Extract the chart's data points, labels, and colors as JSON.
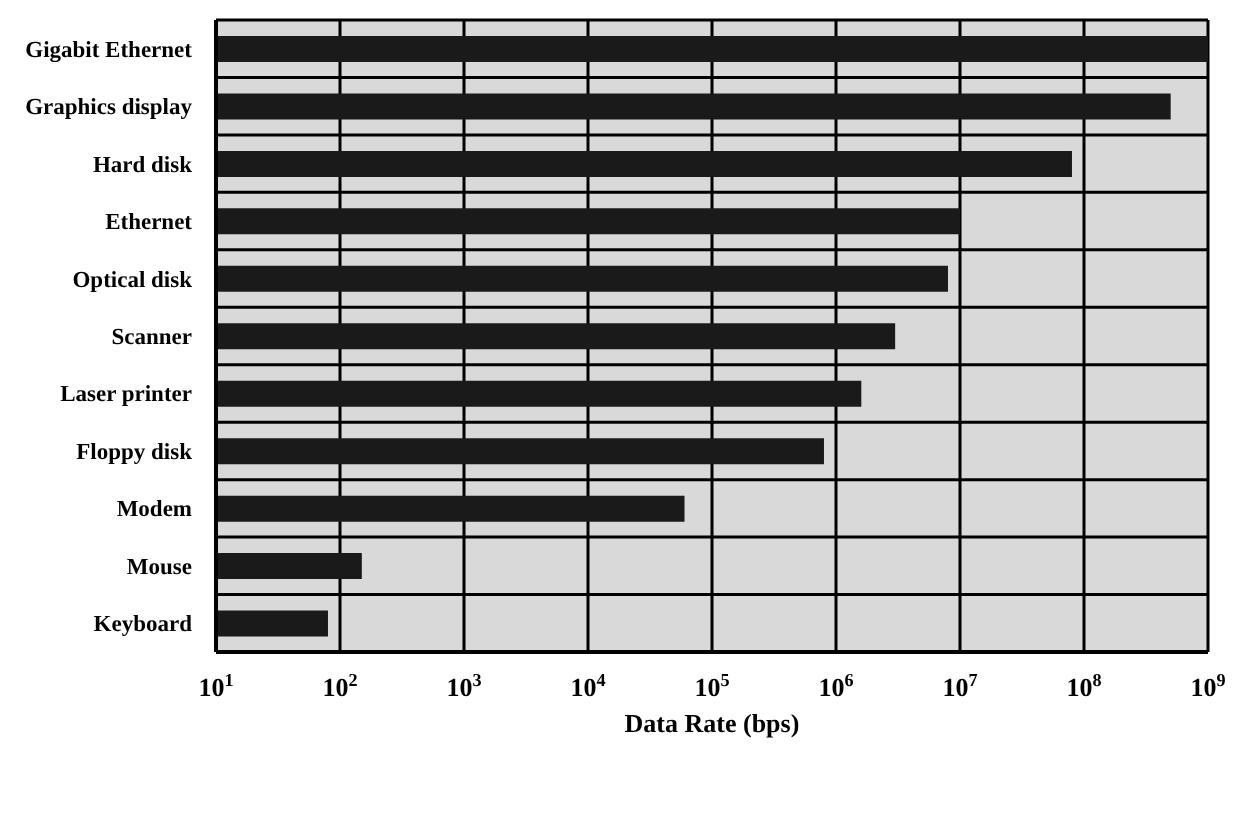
{
  "chart_data": {
    "type": "bar",
    "orientation": "horizontal",
    "log": "x",
    "xlabel": "Data Rate (bps)",
    "categories": [
      "Gigabit Ethernet",
      "Graphics display",
      "Hard disk",
      "Ethernet",
      "Optical disk",
      "Scanner",
      "Laser printer",
      "Floppy disk",
      "Modem",
      "Mouse",
      "Keyboard"
    ],
    "values": [
      1000000000,
      500000000,
      80000000,
      10000000,
      8000000,
      3000000,
      1600000,
      800000,
      60000,
      150,
      80
    ],
    "color": "#1a1a1a",
    "xlim": [
      10,
      1000000000
    ],
    "xticks": [
      {
        "value": 10,
        "label": "10$^{1}$"
      },
      {
        "value": 100,
        "label": "10$^{2}$"
      },
      {
        "value": 1000,
        "label": "10$^{3}$"
      },
      {
        "value": 10000,
        "label": "10$^{4}$"
      },
      {
        "value": 100000,
        "label": "10$^{5}$"
      },
      {
        "value": 1000000,
        "label": "10$^{6}$"
      },
      {
        "value": 10000000,
        "label": "10$^{7}$"
      },
      {
        "value": 100000000,
        "label": "10$^{8}$"
      },
      {
        "value": 1000000000,
        "label": "10$^{9}$"
      }
    ],
    "grid": true
  }
}
